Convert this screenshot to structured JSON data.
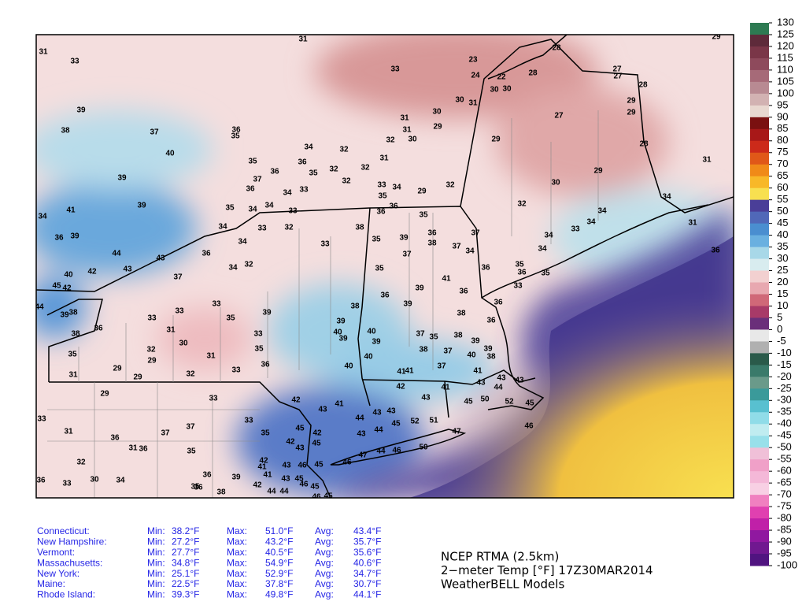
{
  "colorbar": {
    "ticks": [
      130,
      125,
      120,
      115,
      110,
      105,
      100,
      95,
      90,
      85,
      80,
      75,
      70,
      65,
      60,
      55,
      50,
      45,
      40,
      35,
      30,
      25,
      20,
      15,
      10,
      5,
      0,
      -5,
      -10,
      -15,
      -20,
      -25,
      -30,
      -35,
      -40,
      -45,
      -50,
      -55,
      -60,
      -65,
      -70,
      -75,
      -80,
      -85,
      -90,
      -95,
      -100
    ],
    "colors": [
      "#2d7a52",
      "#5e2a3a",
      "#7a3648",
      "#8e4a5c",
      "#a66a78",
      "#b88a92",
      "#d2b2b2",
      "#e8d8d0",
      "#7a1010",
      "#a81818",
      "#cc2a1a",
      "#e05818",
      "#f08a18",
      "#f8b828",
      "#f8e050",
      "#4a3e98",
      "#5068b8",
      "#4a8ed0",
      "#6ab0e0",
      "#a8d8e8",
      "#d8ecef",
      "#f2d0d0",
      "#e8a8b0",
      "#d06878",
      "#a83a68",
      "#6a2f7a",
      "#e8e8e8",
      "#b0b0b0",
      "#2a5a4a",
      "#3a7a6a",
      "#6a9a8a",
      "#3a9a9a",
      "#58c0d0",
      "#90dce8",
      "#c0ecf0",
      "#98e0ea",
      "#f0c0d8",
      "#f0a0c8",
      "#f4b8d8",
      "#f8d0e4",
      "#f080c0",
      "#e040b0",
      "#c020a8",
      "#9018a0",
      "#701890",
      "#501480"
    ]
  },
  "stations": [
    31,
    31,
    33,
    33,
    23,
    28,
    29,
    24,
    22,
    28,
    27,
    27,
    28,
    30,
    30,
    30,
    31,
    30,
    29,
    29,
    27,
    31,
    29,
    39,
    38,
    37,
    36,
    35,
    31,
    32,
    30,
    29,
    28,
    40,
    34,
    32,
    35,
    36,
    31,
    31,
    39,
    36,
    35,
    32,
    32,
    37,
    36,
    34,
    33,
    32,
    33,
    34,
    29,
    32,
    30,
    29,
    35,
    34,
    39,
    41,
    35,
    34,
    34,
    33,
    36,
    36,
    35,
    32,
    34,
    34,
    33,
    34,
    34,
    33,
    32,
    38,
    37,
    34,
    31,
    36,
    39,
    34,
    33,
    35,
    39,
    36,
    38,
    37,
    34,
    34,
    36,
    35,
    44,
    43,
    36,
    37,
    35,
    36,
    40,
    42,
    43,
    32,
    34,
    35,
    36,
    35,
    37,
    45,
    42,
    41,
    36,
    39,
    36,
    33,
    33,
    33,
    44,
    38,
    39,
    38,
    39,
    36,
    33,
    35,
    39,
    39,
    36,
    38,
    36,
    31,
    33,
    40,
    39,
    40,
    37,
    35,
    38,
    38,
    30,
    39,
    39,
    35,
    32,
    31,
    35,
    38,
    37,
    39,
    29,
    40,
    40,
    38,
    36,
    40,
    41,
    41,
    37,
    41,
    29,
    33,
    32,
    31,
    29,
    43,
    43,
    44,
    43,
    42,
    29,
    33,
    42,
    41,
    43,
    41,
    43,
    45,
    50,
    52,
    45,
    44,
    43,
    43,
    33,
    33,
    37,
    37,
    31,
    36,
    45,
    42,
    42,
    35,
    43,
    44,
    45,
    52,
    51,
    47,
    46,
    35,
    31,
    36,
    35,
    45,
    43,
    47,
    44,
    46,
    50,
    32,
    42,
    41,
    43,
    46,
    45,
    46,
    36,
    33,
    30,
    34,
    36,
    39,
    41,
    43,
    45,
    35,
    36,
    38,
    42,
    44,
    44,
    46,
    45,
    45,
    46
  ],
  "stats": {
    "labels": [
      "Min:",
      "Max:",
      "Avg:"
    ],
    "rows": [
      [
        "Connecticut:",
        "38.2°F",
        "51.0°F",
        "43.4°F"
      ],
      [
        "New Hampshire:",
        "27.2°F",
        "43.2°F",
        "35.7°F"
      ],
      [
        "Vermont:",
        "27.7°F",
        "40.5°F",
        "35.6°F"
      ],
      [
        "Massachusetts:",
        "34.8°F",
        "54.9°F",
        "40.6°F"
      ],
      [
        "New York:",
        "25.1°F",
        "52.9°F",
        "34.7°F"
      ],
      [
        "Maine:",
        "22.5°F",
        "37.8°F",
        "30.7°F"
      ],
      [
        "Rhode Island:",
        "39.3°F",
        "49.8°F",
        "44.1°F"
      ]
    ]
  },
  "caption": [
    "NCEP RTMA (2.5km)",
    "2−meter Temp [°F] 17Z30MAR2014",
    "WeatherBELL Models"
  ]
}
